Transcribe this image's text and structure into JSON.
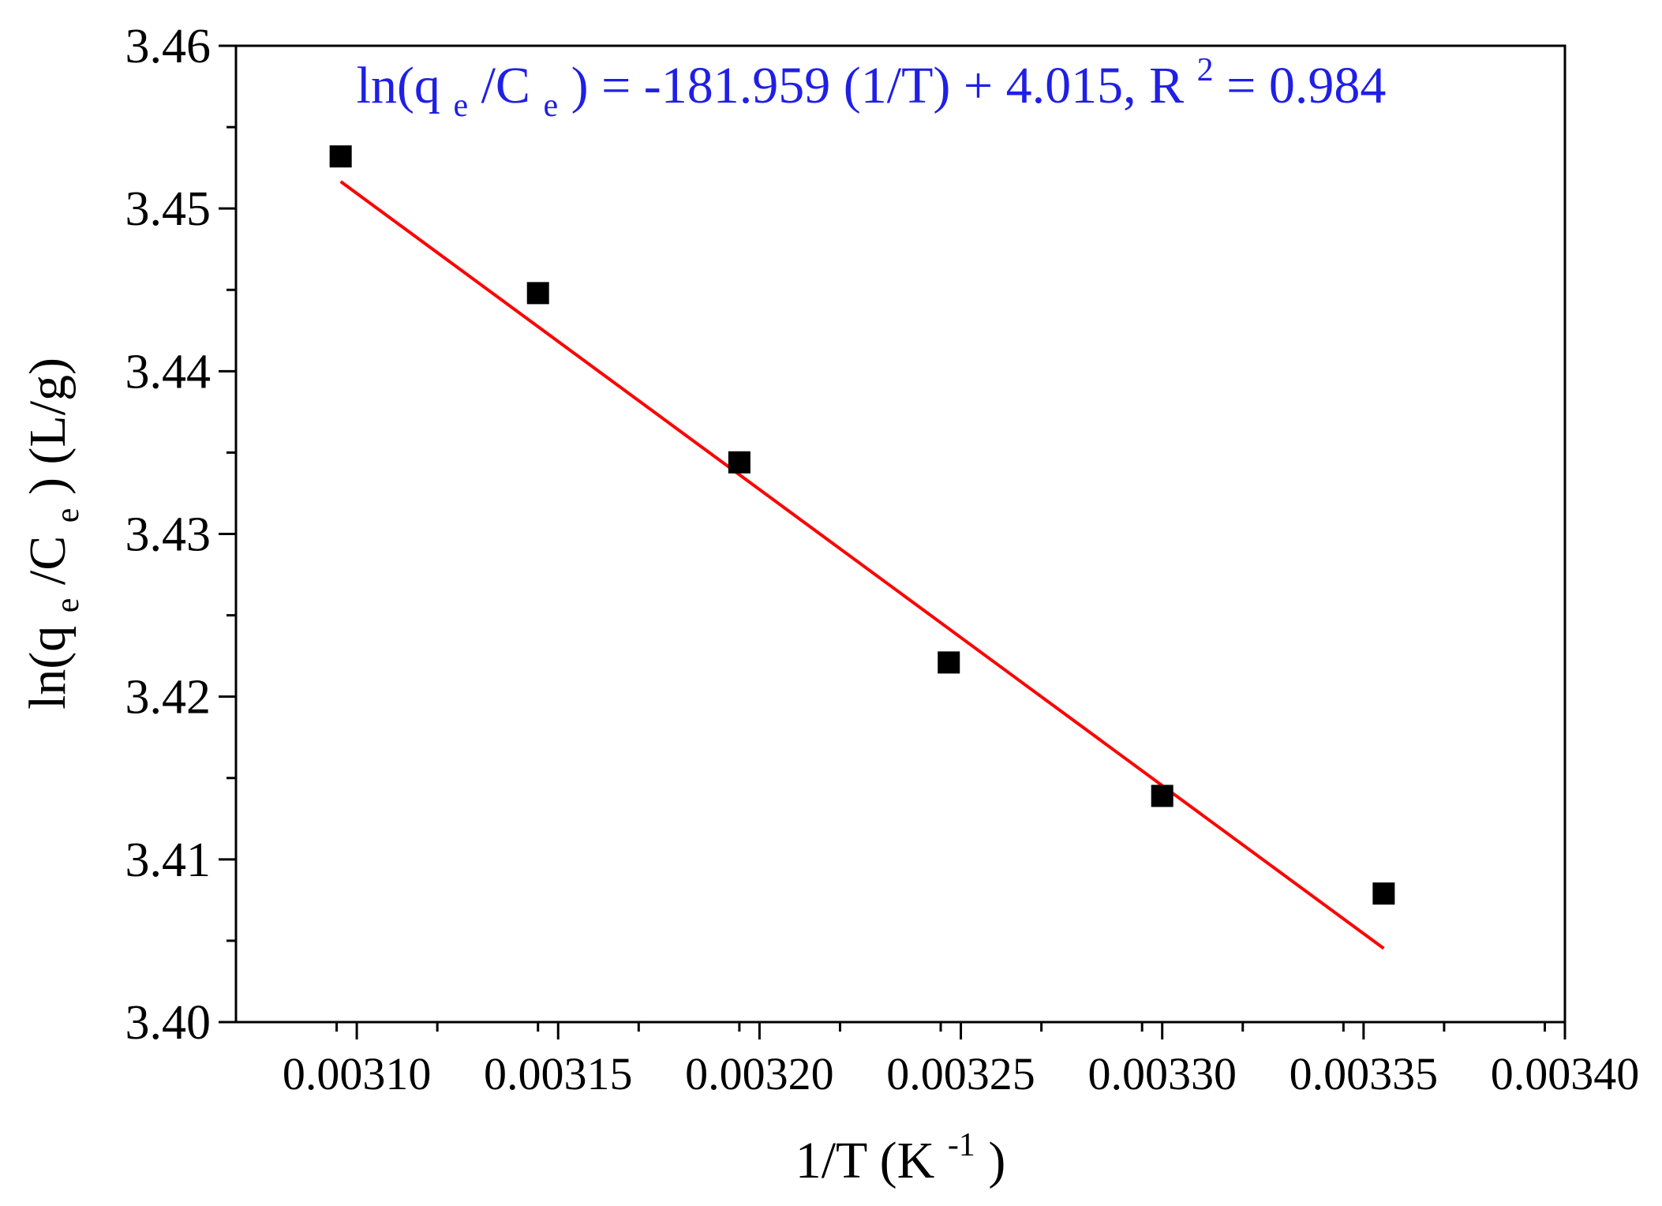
{
  "chart_data": {
    "type": "scatter",
    "xlabel": {
      "main": "1/T (K",
      "sup": "-1",
      "close": ")"
    },
    "ylabel": {
      "prefix": "ln(q",
      "sub1": "e",
      "mid": "/C",
      "sub2": "e",
      "suffix": ") (L/g)"
    },
    "xlim": [
      0.00307,
      0.0034
    ],
    "ylim": [
      3.4,
      3.46
    ],
    "x_ticks": [
      "0.00310",
      "0.00315",
      "0.00320",
      "0.00325",
      "0.00330",
      "0.00335",
      "0.00340"
    ],
    "y_ticks": [
      "3.40",
      "3.41",
      "3.42",
      "3.43",
      "3.44",
      "3.45",
      "3.46"
    ],
    "x_minor_step": 2.5e-05,
    "y_minor_step": 0.005,
    "grid": false,
    "points": [
      {
        "x": 0.003096,
        "y": 3.4532
      },
      {
        "x": 0.003145,
        "y": 3.4448
      },
      {
        "x": 0.003195,
        "y": 3.4344
      },
      {
        "x": 0.003247,
        "y": 3.4221
      },
      {
        "x": 0.0033,
        "y": 3.4139
      },
      {
        "x": 0.003355,
        "y": 3.4079
      }
    ],
    "marker_color": "#000000",
    "fit_line": {
      "slope": -181.959,
      "intercept": 4.015,
      "x_range": [
        0.003096,
        0.003355
      ],
      "color": "#ff0000"
    },
    "annotation": {
      "color": "#1f1fe6",
      "part1": "ln(q",
      "sub1": "e",
      "part2": "/C",
      "sub2": "e",
      "part3": ") = -181.959 (1/T) + 4.015, R",
      "sup": "2",
      "part4": " = 0.984"
    }
  }
}
